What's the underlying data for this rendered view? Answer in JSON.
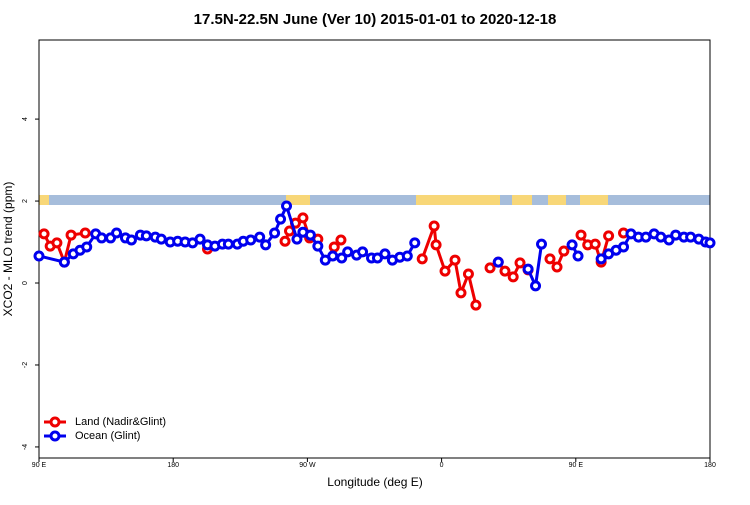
{
  "chart_data": {
    "type": "line",
    "title": "17.5N-22.5N June (Ver 10)   2015-01-01 to 2020-12-18",
    "xlabel": "Longitude (deg E)",
    "ylabel": "XCO2 - MLO trend (ppm)",
    "xlim": [
      -270,
      180
    ],
    "xticks": [
      {
        "value": -270,
        "label": "90 E"
      },
      {
        "value": -180,
        "label": "180"
      },
      {
        "value": -90,
        "label": "90 W"
      },
      0,
      {
        "value": 90,
        "label": "90 E"
      },
      180
    ],
    "ylim": [
      -4.27,
      5.93
    ],
    "yticks": [
      -4,
      -2,
      0,
      2,
      4
    ],
    "legend": "bottom-left",
    "series": [
      {
        "name": "Land (Nadir&Glint)",
        "color": "#ee0000",
        "x": [
          -266.6,
          -262.5,
          -258,
          -253,
          -248.5,
          -239,
          null,
          -157,
          null,
          -105,
          -102,
          -98,
          -93,
          -88.5,
          -83,
          null,
          -72,
          -67.5,
          null,
          -13,
          -5,
          -3.7,
          2.3,
          9,
          13,
          18,
          23,
          null,
          32.5,
          38,
          42.5,
          48,
          52.6,
          58,
          null,
          72.7,
          77.4,
          82,
          null,
          93.5,
          98,
          103,
          107,
          112,
          null,
          122
        ],
        "values": [
          1.2,
          0.9,
          0.98,
          0.51,
          1.17,
          1.22,
          null,
          0.83,
          null,
          1.02,
          1.27,
          1.46,
          1.59,
          1.1,
          1.07,
          null,
          0.88,
          1.05,
          null,
          0.59,
          1.39,
          0.93,
          0.29,
          0.56,
          -0.24,
          0.22,
          -0.54,
          null,
          0.37,
          0.51,
          0.29,
          0.15,
          0.49,
          0.32,
          null,
          0.59,
          0.39,
          0.78,
          null,
          1.17,
          0.93,
          0.95,
          0.51,
          1.15,
          null,
          1.22
        ]
      },
      {
        "name": "Ocean (Glint)",
        "color": "#0000ee",
        "x": [
          -270,
          -253,
          -247,
          -242.5,
          -238,
          -232,
          -228,
          -222,
          -218,
          -212,
          -208,
          -202,
          -198,
          -192,
          -188,
          -182,
          -177,
          -172,
          -167,
          -162,
          -157,
          -152,
          -147,
          -143,
          -137,
          -133,
          -128,
          -122,
          -118,
          -112,
          -108,
          -104,
          -97,
          -93,
          -88,
          -83,
          -78,
          -73,
          -67,
          -63,
          -57,
          -53,
          -47,
          -43,
          -38,
          -33,
          -28,
          -23,
          -18,
          null,
          38,
          null,
          58,
          63,
          67,
          null,
          87.5,
          91.5,
          null,
          107,
          112,
          117,
          122,
          127,
          132,
          137,
          142.5,
          147,
          152.5,
          157,
          162.5,
          167,
          172.5,
          177,
          180
        ],
        "values": [
          0.66,
          0.51,
          0.71,
          0.8,
          0.88,
          1.2,
          1.1,
          1.1,
          1.22,
          1.1,
          1.05,
          1.17,
          1.15,
          1.12,
          1.07,
          1.0,
          1.02,
          1.0,
          0.98,
          1.07,
          0.93,
          0.9,
          0.95,
          0.95,
          0.95,
          1.02,
          1.05,
          1.12,
          0.93,
          1.22,
          1.56,
          1.88,
          1.07,
          1.24,
          1.17,
          0.9,
          0.56,
          0.66,
          0.61,
          0.76,
          0.68,
          0.76,
          0.61,
          0.61,
          0.71,
          0.56,
          0.63,
          0.66,
          0.98,
          null,
          0.51,
          null,
          0.34,
          -0.07,
          0.95,
          null,
          0.93,
          0.66,
          null,
          0.59,
          0.71,
          0.8,
          0.88,
          1.2,
          1.12,
          1.12,
          1.2,
          1.12,
          1.05,
          1.17,
          1.12,
          1.12,
          1.07,
          1.0,
          0.98
        ]
      }
    ]
  }
}
